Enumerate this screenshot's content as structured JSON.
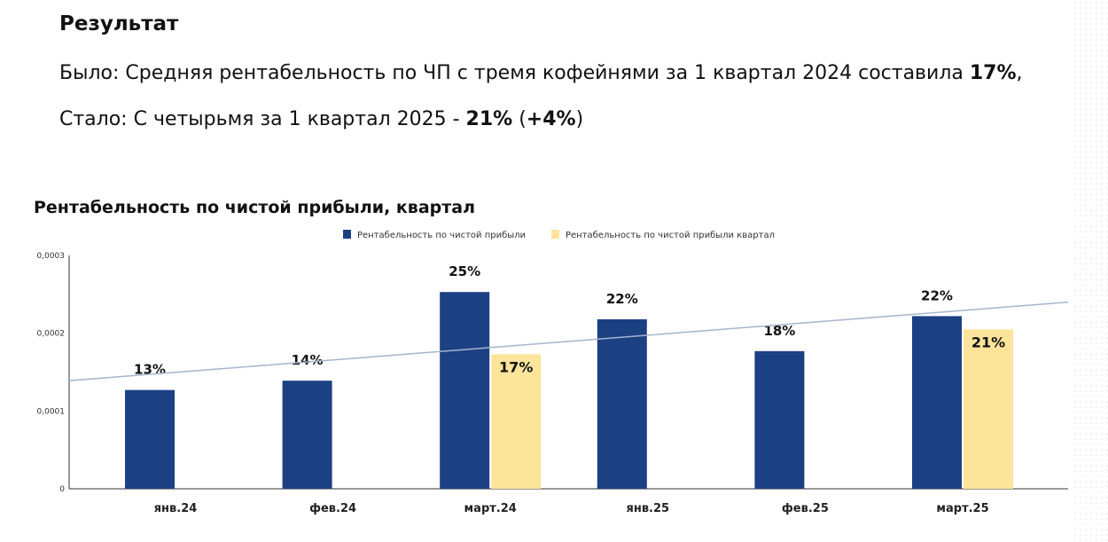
{
  "heading": "Результат",
  "line1": {
    "text": "Было: Средняя рентабельность по ЧП с тремя кофейнями за 1 квартал 2024 составила ",
    "bold": "17%",
    "tail": ","
  },
  "line2": {
    "text": "Стало: С четырьмя за 1 квартал 2025 - ",
    "bold": "21%",
    "mid": " (",
    "bold2": "+4%",
    "tail": ")"
  },
  "chart_data": {
    "type": "bar",
    "title": "Рентабельность по чистой прибыли, квартал",
    "categories": [
      "янв.24",
      "фев.24",
      "март.24",
      "янв.25",
      "фев.25",
      "март.25"
    ],
    "series": [
      {
        "name": "Рентабельность по чистой прибыли",
        "color": "#1c4084",
        "values": [
          0.000127,
          0.000139,
          0.000253,
          0.000218,
          0.000177,
          0.000222
        ],
        "labels": [
          "13%",
          "14%",
          "25%",
          "22%",
          "18%",
          "22%"
        ]
      },
      {
        "name": "Рентабельность по чистой прибыли квартал",
        "color": "#fde49b",
        "values": [
          null,
          null,
          0.000173,
          null,
          null,
          0.000205
        ],
        "labels": [
          null,
          null,
          "17%",
          null,
          null,
          "21%"
        ]
      }
    ],
    "trendline": {
      "start": 0.000139,
      "end": 0.00024,
      "color": "#a7b5cc"
    },
    "yticks": [
      "0",
      "0,0001",
      "0,0002",
      "0,0003"
    ],
    "ylim": [
      0,
      0.0003
    ],
    "legend": "top"
  }
}
